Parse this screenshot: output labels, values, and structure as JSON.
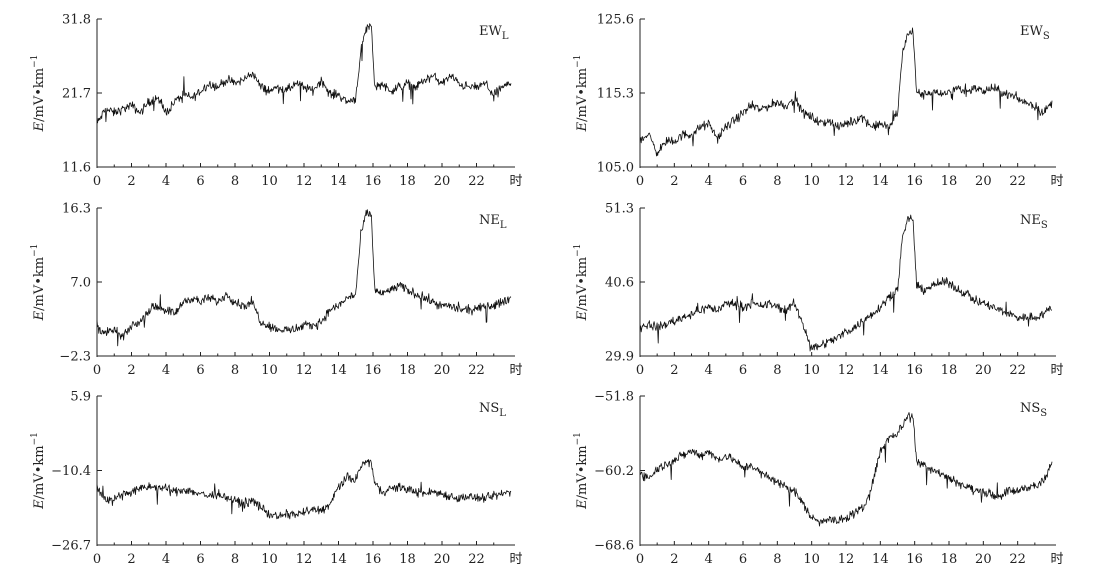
{
  "charts": [
    {
      "title": "EW",
      "sub": "L",
      "yticks": [
        "11.6",
        "21.7",
        "31.8"
      ]
    },
    {
      "title": "EW",
      "sub": "S",
      "yticks": [
        "105.0",
        "115.3",
        "125.6"
      ]
    },
    {
      "title": "NE",
      "sub": "L",
      "yticks": [
        "−2.3",
        "7.0",
        "16.3"
      ]
    },
    {
      "title": "NE",
      "sub": "S",
      "yticks": [
        "29.9",
        "40.6",
        "51.3"
      ]
    },
    {
      "title": "NS",
      "sub": "L",
      "yticks": [
        "−26.7",
        "−10.4",
        "5.9"
      ]
    },
    {
      "title": "NS",
      "sub": "S",
      "yticks": [
        "−68.6",
        "−60.2",
        "−51.8"
      ]
    }
  ],
  "xticks": [
    "0",
    "2",
    "4",
    "6",
    "8",
    "10",
    "12",
    "14",
    "16",
    "18",
    "20",
    "22"
  ],
  "xunit": "时",
  "ylabel_e": "E",
  "ylabel_unit": "/mV•km",
  "ylabel_exp": "−1",
  "chart_data": [
    {
      "type": "line",
      "name": "EW_L",
      "xlim": [
        0,
        24
      ],
      "ylim": [
        11.6,
        31.8
      ],
      "x": [
        0,
        0.5,
        1,
        1.5,
        2,
        2.5,
        3,
        3.5,
        4,
        4.5,
        5,
        5.5,
        6,
        6.5,
        7,
        7.5,
        8,
        8.5,
        9,
        9.5,
        10,
        10.5,
        11,
        11.5,
        12,
        12.5,
        13,
        13.5,
        14,
        14.5,
        15,
        15.3,
        15.6,
        15.9,
        16.1,
        16.5,
        17,
        17.5,
        18,
        18.5,
        19,
        19.5,
        20,
        20.5,
        21,
        21.5,
        22,
        22.5,
        23,
        23.5,
        24
      ],
      "y": [
        17.5,
        19.5,
        19.0,
        19.5,
        20.0,
        19.0,
        20.5,
        21.0,
        19.0,
        20.5,
        21.5,
        21.0,
        22.0,
        23.0,
        22.5,
        23.5,
        23.0,
        23.5,
        24.5,
        22.5,
        22.0,
        22.5,
        22.0,
        23.0,
        22.5,
        22.0,
        23.5,
        21.5,
        21.5,
        20.5,
        21.0,
        27.5,
        30.5,
        31.0,
        22.5,
        23.0,
        22.0,
        22.5,
        23.0,
        22.5,
        23.5,
        24.0,
        23.0,
        24.0,
        23.0,
        22.5,
        22.5,
        23.0,
        21.5,
        22.5,
        23.0
      ]
    },
    {
      "type": "line",
      "name": "EW_S",
      "xlim": [
        0,
        24
      ],
      "ylim": [
        105.0,
        125.6
      ],
      "x": [
        0,
        0.5,
        1,
        1.5,
        2,
        2.5,
        3,
        3.5,
        4,
        4.5,
        5,
        5.5,
        6,
        6.5,
        7,
        7.5,
        8,
        8.5,
        9,
        9.5,
        10,
        10.5,
        11,
        11.5,
        12,
        12.5,
        13,
        13.5,
        14,
        14.5,
        15,
        15.3,
        15.6,
        15.9,
        16.1,
        16.5,
        17,
        17.5,
        18,
        18.5,
        19,
        19.5,
        20,
        20.5,
        21,
        21.5,
        22,
        22.5,
        23,
        23.5,
        24
      ],
      "y": [
        109.0,
        109.5,
        107.0,
        108.5,
        108.5,
        109.5,
        109.5,
        110.5,
        111.0,
        109.0,
        110.5,
        111.5,
        112.5,
        113.5,
        113.0,
        113.5,
        114.0,
        113.5,
        114.5,
        112.5,
        112.0,
        111.0,
        111.5,
        110.5,
        111.0,
        111.5,
        112.0,
        110.5,
        111.0,
        110.5,
        112.5,
        121.0,
        123.5,
        124.0,
        115.5,
        115.0,
        115.5,
        115.0,
        115.5,
        116.0,
        115.5,
        116.0,
        115.5,
        116.0,
        115.5,
        115.0,
        114.5,
        114.0,
        113.5,
        112.5,
        114.0
      ]
    },
    {
      "type": "line",
      "name": "NE_L",
      "xlim": [
        0,
        24
      ],
      "ylim": [
        -2.3,
        16.3
      ],
      "x": [
        0,
        0.5,
        1,
        1.5,
        2,
        2.5,
        3,
        3.5,
        4,
        4.5,
        5,
        5.5,
        6,
        6.5,
        7,
        7.5,
        8,
        8.5,
        9,
        9.5,
        10,
        10.5,
        11,
        11.5,
        12,
        12.5,
        13,
        13.5,
        14,
        14.5,
        15,
        15.3,
        15.6,
        15.9,
        16.1,
        16.5,
        17,
        17.5,
        18,
        18.5,
        19,
        19.5,
        20,
        20.5,
        21,
        21.5,
        22,
        22.5,
        23,
        23.5,
        24
      ],
      "y": [
        1.5,
        0.5,
        1.0,
        0.0,
        1.5,
        2.0,
        3.5,
        4.0,
        3.5,
        3.0,
        4.5,
        5.0,
        4.5,
        5.0,
        4.5,
        5.5,
        4.5,
        4.0,
        4.5,
        2.0,
        1.5,
        1.0,
        1.0,
        1.0,
        1.5,
        1.5,
        2.0,
        3.5,
        4.0,
        5.0,
        5.5,
        13.0,
        15.5,
        15.5,
        6.0,
        5.5,
        6.0,
        6.5,
        6.0,
        5.5,
        5.0,
        4.5,
        4.0,
        4.0,
        3.5,
        3.5,
        3.5,
        4.0,
        4.0,
        4.5,
        5.0
      ]
    },
    {
      "type": "line",
      "name": "NE_S",
      "xlim": [
        0,
        24
      ],
      "ylim": [
        29.9,
        51.3
      ],
      "x": [
        0,
        0.5,
        1,
        1.5,
        2,
        2.5,
        3,
        3.5,
        4,
        4.5,
        5,
        5.5,
        6,
        6.5,
        7,
        7.5,
        8,
        8.5,
        9,
        9.5,
        10,
        10.5,
        11,
        11.5,
        12,
        12.5,
        13,
        13.5,
        14,
        14.5,
        15,
        15.3,
        15.6,
        15.9,
        16.1,
        16.5,
        17,
        17.5,
        18,
        18.5,
        19,
        19.5,
        20,
        20.5,
        21,
        21.5,
        22,
        22.5,
        23,
        23.5,
        24
      ],
      "y": [
        34.0,
        34.5,
        34.0,
        34.5,
        35.0,
        35.5,
        36.0,
        36.5,
        37.0,
        36.5,
        37.5,
        37.5,
        37.0,
        37.5,
        37.0,
        37.5,
        37.0,
        36.5,
        37.5,
        34.5,
        31.0,
        31.5,
        32.0,
        32.5,
        33.5,
        34.0,
        35.0,
        36.0,
        37.0,
        38.5,
        39.5,
        47.0,
        49.5,
        50.0,
        40.0,
        39.5,
        40.0,
        40.5,
        40.5,
        39.5,
        39.0,
        38.0,
        37.5,
        37.0,
        36.5,
        36.0,
        35.5,
        35.5,
        35.5,
        36.0,
        37.0
      ]
    },
    {
      "type": "line",
      "name": "NS_L",
      "xlim": [
        0,
        24
      ],
      "ylim": [
        -26.7,
        5.9
      ],
      "x": [
        0,
        0.5,
        1,
        1.5,
        2,
        2.5,
        3,
        3.5,
        4,
        4.5,
        5,
        5.5,
        6,
        6.5,
        7,
        7.5,
        8,
        8.5,
        9,
        9.5,
        10,
        10.5,
        11,
        11.5,
        12,
        12.5,
        13,
        13.5,
        14,
        14.5,
        15,
        15.3,
        15.6,
        15.9,
        16.1,
        16.5,
        17,
        17.5,
        18,
        18.5,
        19,
        19.5,
        20,
        20.5,
        21,
        21.5,
        22,
        22.5,
        23,
        23.5,
        24
      ],
      "y": [
        -14.0,
        -17.0,
        -16.5,
        -15.5,
        -15.0,
        -14.5,
        -14.0,
        -14.0,
        -14.5,
        -15.0,
        -14.5,
        -15.0,
        -15.5,
        -16.0,
        -15.5,
        -16.5,
        -17.0,
        -17.5,
        -17.0,
        -18.5,
        -20.0,
        -20.5,
        -20.0,
        -20.0,
        -19.5,
        -19.0,
        -19.0,
        -18.0,
        -14.0,
        -12.0,
        -12.5,
        -9.5,
        -8.5,
        -8.5,
        -13.5,
        -15.0,
        -14.5,
        -14.0,
        -14.5,
        -15.0,
        -15.5,
        -15.0,
        -15.5,
        -16.0,
        -16.5,
        -16.0,
        -16.5,
        -16.5,
        -16.0,
        -15.5,
        -15.0
      ]
    },
    {
      "type": "line",
      "name": "NS_S",
      "xlim": [
        0,
        24
      ],
      "ylim": [
        -68.6,
        -51.8
      ],
      "x": [
        0,
        0.5,
        1,
        1.5,
        2,
        2.5,
        3,
        3.5,
        4,
        4.5,
        5,
        5.5,
        6,
        6.5,
        7,
        7.5,
        8,
        8.5,
        9,
        9.5,
        10,
        10.5,
        11,
        11.5,
        12,
        12.5,
        13,
        13.5,
        14,
        14.5,
        15,
        15.3,
        15.6,
        15.9,
        16.1,
        16.5,
        17,
        17.5,
        18,
        18.5,
        19,
        19.5,
        20,
        20.5,
        21,
        21.5,
        22,
        22.5,
        23,
        23.5,
        24
      ],
      "y": [
        -60.5,
        -61.0,
        -60.0,
        -59.5,
        -59.0,
        -58.5,
        -58.0,
        -58.5,
        -58.0,
        -59.0,
        -58.5,
        -59.0,
        -60.0,
        -59.5,
        -60.5,
        -61.0,
        -61.5,
        -62.0,
        -62.5,
        -64.0,
        -65.5,
        -66.0,
        -65.5,
        -66.0,
        -65.5,
        -65.0,
        -64.5,
        -62.0,
        -58.0,
        -56.5,
        -56.0,
        -55.0,
        -54.0,
        -54.0,
        -59.0,
        -59.5,
        -60.0,
        -60.5,
        -61.0,
        -61.5,
        -62.0,
        -62.5,
        -62.5,
        -63.0,
        -63.0,
        -62.5,
        -62.5,
        -62.0,
        -62.0,
        -61.5,
        -59.5
      ]
    }
  ]
}
